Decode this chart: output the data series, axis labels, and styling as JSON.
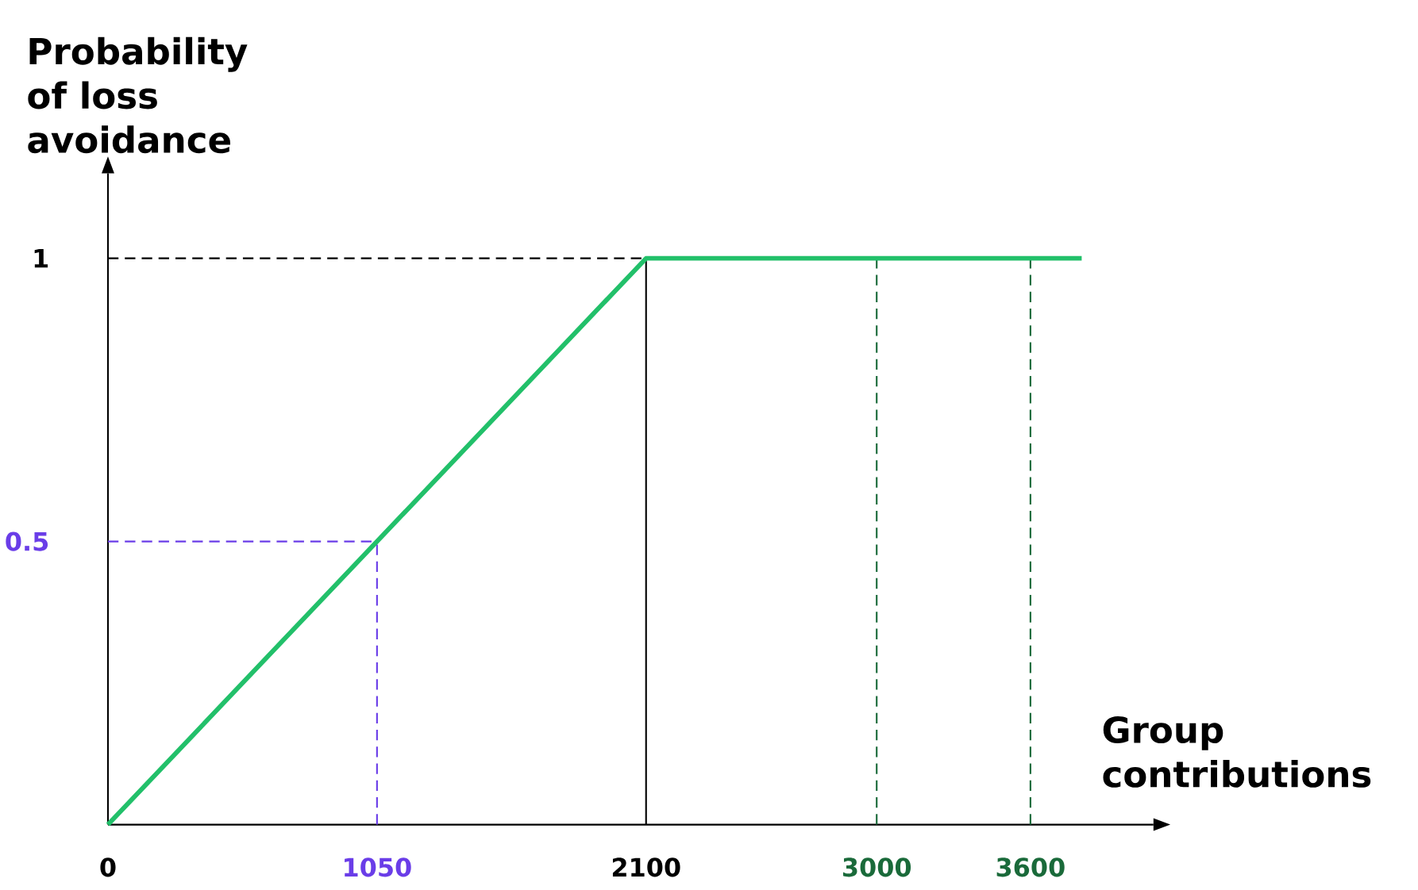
{
  "chart_data": {
    "type": "line",
    "xlabel": "Group contributions",
    "ylabel": "Probability of loss avoidance",
    "x": [
      0,
      2100,
      3800
    ],
    "series": [
      {
        "color": "#22c06a",
        "values": [
          0,
          1,
          1
        ]
      }
    ],
    "xlim": [
      0,
      4080
    ],
    "ylim": [
      0,
      1.15
    ],
    "xticks": [
      0,
      1050,
      2100,
      3000,
      3600
    ],
    "yticks": [
      0.5,
      1
    ],
    "line_style": "solid",
    "grid": false,
    "ref_lines": [
      {
        "axis": "y",
        "value": 1,
        "color": "#000000",
        "line_style": "dashed"
      },
      {
        "axis": "x",
        "value": 2100,
        "color": "#000000",
        "line_style": "solid"
      },
      {
        "axis": "x",
        "value": 3000,
        "color": "#1a6a3a",
        "line_style": "dashed"
      },
      {
        "axis": "x",
        "value": 3600,
        "color": "#1a6a3a",
        "line_style": "dashed"
      },
      {
        "axis": "x",
        "value": 1050,
        "color": "#6a3de8",
        "line_style": "dashed"
      },
      {
        "axis": "y",
        "value": 0.5,
        "color": "#6a3de8",
        "line_style": "dashed"
      }
    ]
  }
}
